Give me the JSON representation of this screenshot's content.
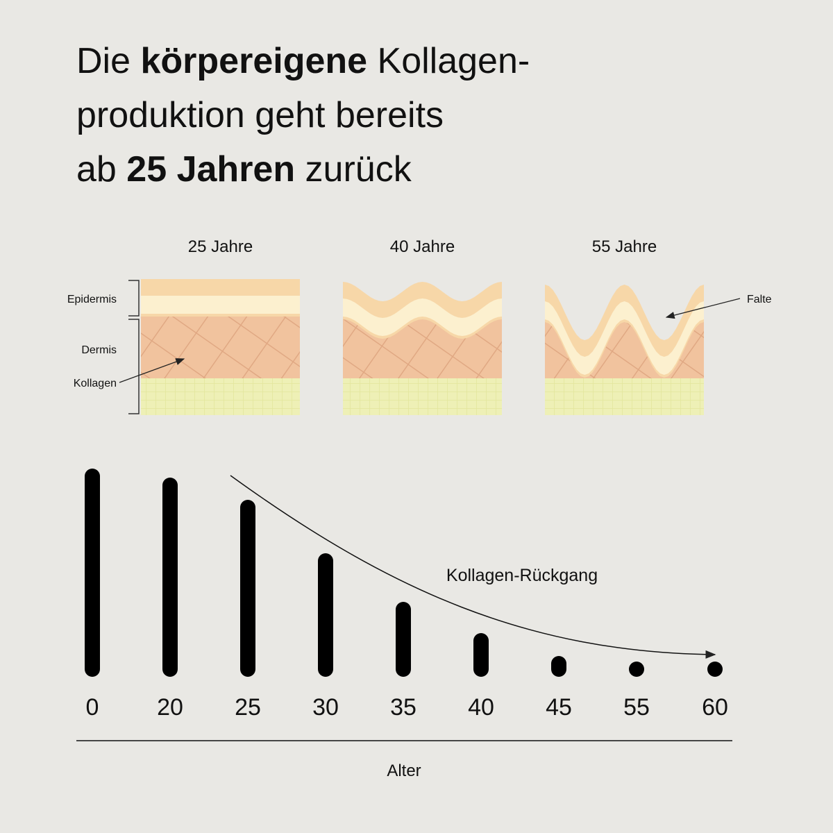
{
  "chart_data": {
    "type": "bar",
    "title_lines": [
      [
        {
          "text": "Die ",
          "bold": false
        },
        {
          "text": "körpereigene",
          "bold": true
        },
        {
          "text": " Kollagen-",
          "bold": false
        }
      ],
      [
        {
          "text": "produktion geht bereits",
          "bold": false
        }
      ],
      [
        {
          "text": "ab ",
          "bold": false
        },
        {
          "text": "25 Jahren",
          "bold": true
        },
        {
          "text": " zurück",
          "bold": false
        }
      ]
    ],
    "diagram": {
      "stages": [
        "25 Jahre",
        "40 Jahre",
        "55 Jahre"
      ],
      "layers": [
        "Epidermis",
        "Dermis"
      ],
      "collagen_label": "Kollagen",
      "wrinkle_label": "Falte"
    },
    "categories": [
      "0",
      "20",
      "25",
      "30",
      "35",
      "40",
      "45",
      "55",
      "60"
    ],
    "values": [
      300,
      287,
      255,
      178,
      108,
      63,
      30,
      19,
      14
    ],
    "color": "#000000",
    "ylim": [
      0,
      300
    ],
    "annotation": "Kollagen-Rückgang",
    "xlabel": "Alter"
  }
}
